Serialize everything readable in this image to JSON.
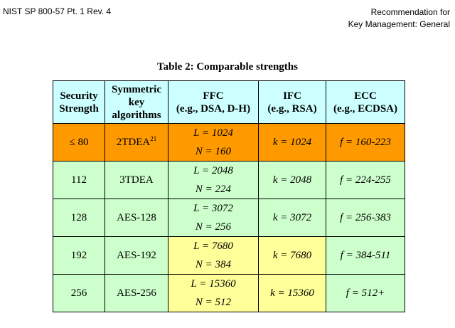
{
  "header": {
    "left": "NIST SP 800-57 Pt. 1 Rev. 4",
    "right_line1": "Recommendation for",
    "right_line2": "Key Management: General"
  },
  "table": {
    "caption": "Table 2: Comparable strengths",
    "headers": {
      "security": [
        "Security",
        "Strength"
      ],
      "symmetric": [
        "Symmetric",
        "key",
        "algorithms"
      ],
      "ffc": [
        "FFC",
        "(e.g., DSA, D-H)"
      ],
      "ifc": [
        "IFC",
        "(e.g., RSA)"
      ],
      "ecc": [
        "ECC",
        "(e.g., ECDSA)"
      ]
    },
    "rows": [
      {
        "strength": "≤ 80",
        "symmetric": "2TDEA",
        "footnote": "21",
        "ffc_l": "L = 1024",
        "ffc_n": "N = 160",
        "ifc": "k = 1024",
        "ecc": "f = 160-223"
      },
      {
        "strength": "112",
        "symmetric": "3TDEA",
        "footnote": "",
        "ffc_l": "L = 2048",
        "ffc_n": "N = 224",
        "ifc": "k = 2048",
        "ecc": "f = 224-255"
      },
      {
        "strength": "128",
        "symmetric": "AES-128",
        "footnote": "",
        "ffc_l": "L = 3072",
        "ffc_n": "N = 256",
        "ifc": "k = 3072",
        "ecc": "f = 256-383"
      },
      {
        "strength": "192",
        "symmetric": "AES-192",
        "footnote": "",
        "ffc_l": "L = 7680",
        "ffc_n": "N = 384",
        "ifc": "k = 7680",
        "ecc": "f = 384-511"
      },
      {
        "strength": "256",
        "symmetric": "AES-256",
        "footnote": "",
        "ffc_l": "L = 15360",
        "ffc_n": "N = 512",
        "ifc": "k = 15360",
        "ecc": "f = 512+"
      }
    ],
    "colors": {
      "header": "#ccffff",
      "orange": "#ff9900",
      "green": "#ccffcc",
      "yellow": "#ffff99"
    }
  }
}
